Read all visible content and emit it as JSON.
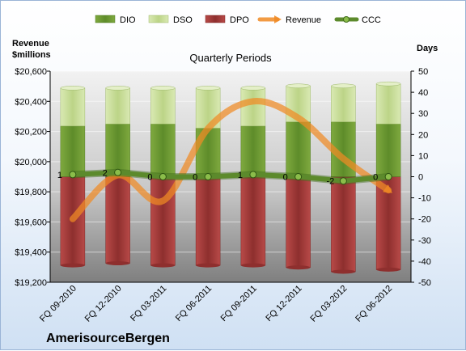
{
  "company": "AmerisourceBergen",
  "chart_data": {
    "type": "bar",
    "title": "Quarterly Periods",
    "categories": [
      "FQ 09-2010",
      "FQ 12-2010",
      "FQ 03-2011",
      "FQ 06-2011",
      "FQ 09-2011",
      "FQ 12-2011",
      "FQ 03-2012",
      "FQ 06-2012"
    ],
    "series": [
      {
        "name": "DIO",
        "axis": "right",
        "stack": "positive",
        "values": [
          24,
          25,
          25,
          23,
          24,
          26,
          26,
          25
        ]
      },
      {
        "name": "DSO",
        "axis": "right",
        "stack": "positive",
        "values": [
          18,
          17,
          17,
          19,
          18,
          17,
          17,
          19
        ]
      },
      {
        "name": "DPO",
        "axis": "right",
        "stack": "negative",
        "values": [
          -42,
          -41,
          -42,
          -42,
          -42,
          -43,
          -45,
          -44
        ]
      },
      {
        "name": "Revenue",
        "axis": "left",
        "type": "line",
        "values": [
          19620,
          19910,
          19740,
          20220,
          20400,
          20290,
          20020,
          19810
        ]
      },
      {
        "name": "CCC",
        "axis": "right",
        "type": "line",
        "values": [
          1,
          2,
          0,
          0,
          1,
          0,
          -2,
          0
        ]
      }
    ],
    "left_axis": {
      "label": "Revenue $millions",
      "ylim": [
        19200,
        20600
      ],
      "ticks": [
        "$19,200",
        "$19,400",
        "$19,600",
        "$19,800",
        "$20,000",
        "$20,200",
        "$20,400",
        "$20,600"
      ]
    },
    "right_axis": {
      "label": "Days",
      "ylim": [
        -50,
        50
      ],
      "ticks": [
        "50",
        "40",
        "30",
        "20",
        "10",
        "0",
        "-10",
        "-20",
        "-30",
        "-40",
        "-50"
      ]
    },
    "legend": [
      "DIO",
      "DSO",
      "DPO",
      "Revenue",
      "CCC"
    ],
    "legend_position": "top",
    "grid": true,
    "colors": {
      "DIO": "#6e9a35",
      "DSO": "#c7dd93",
      "DPO": "#a43c3b",
      "Revenue": "#f08a24",
      "CCC": "#5c8a2c"
    }
  }
}
